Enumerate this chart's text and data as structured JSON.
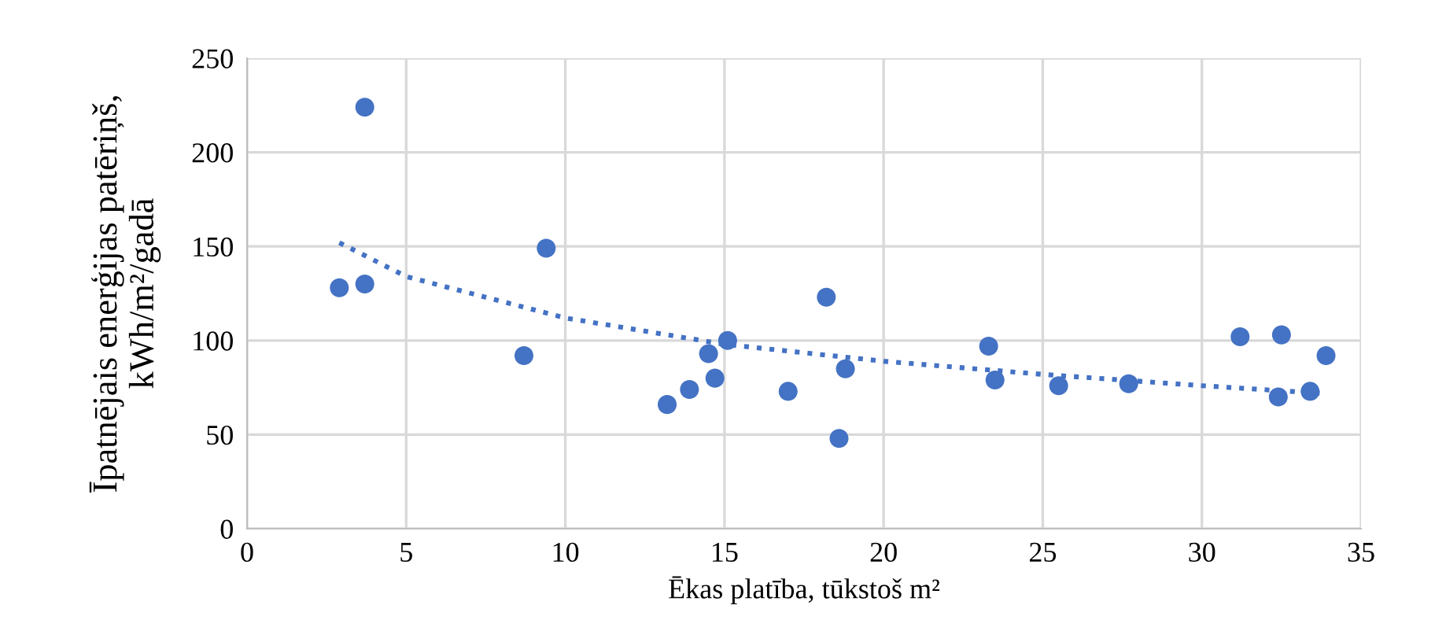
{
  "chart_data": {
    "type": "scatter",
    "xlabel": "Ēkas platība, tūkstoš m²",
    "ylabel": "Īpatnējais enerģijas patēriņš,\nkWh/m²/gadā",
    "xlim": [
      0,
      35
    ],
    "xticks": [
      0,
      5,
      10,
      15,
      20,
      25,
      30,
      35
    ],
    "ylim": [
      0,
      250
    ],
    "yticks": [
      0,
      50,
      100,
      150,
      200,
      250
    ],
    "grid": true,
    "legend": false,
    "series": [
      {
        "color": "#4472c4",
        "marker": "circle",
        "x": [
          2.9,
          3.7,
          3.7,
          8.7,
          9.4,
          13.2,
          13.9,
          14.5,
          14.7,
          15.1,
          17.0,
          18.2,
          18.6,
          18.8,
          23.3,
          23.5,
          25.5,
          27.7,
          31.2,
          32.4,
          32.5,
          33.4,
          33.9
        ],
        "values": [
          128,
          130,
          224,
          92,
          149,
          66,
          74,
          93,
          80,
          100,
          73,
          123,
          48,
          85,
          97,
          79,
          76,
          77,
          102,
          70,
          103,
          73,
          92
        ]
      },
      {
        "type": "line",
        "color": "#4472c4",
        "marker": "none",
        "line_style": "dotted",
        "x": [
          2.9,
          5,
          10,
          15,
          20,
          25,
          30,
          33.7
        ],
        "values": [
          152,
          134,
          112,
          98,
          89,
          82,
          76,
          72
        ]
      }
    ]
  }
}
